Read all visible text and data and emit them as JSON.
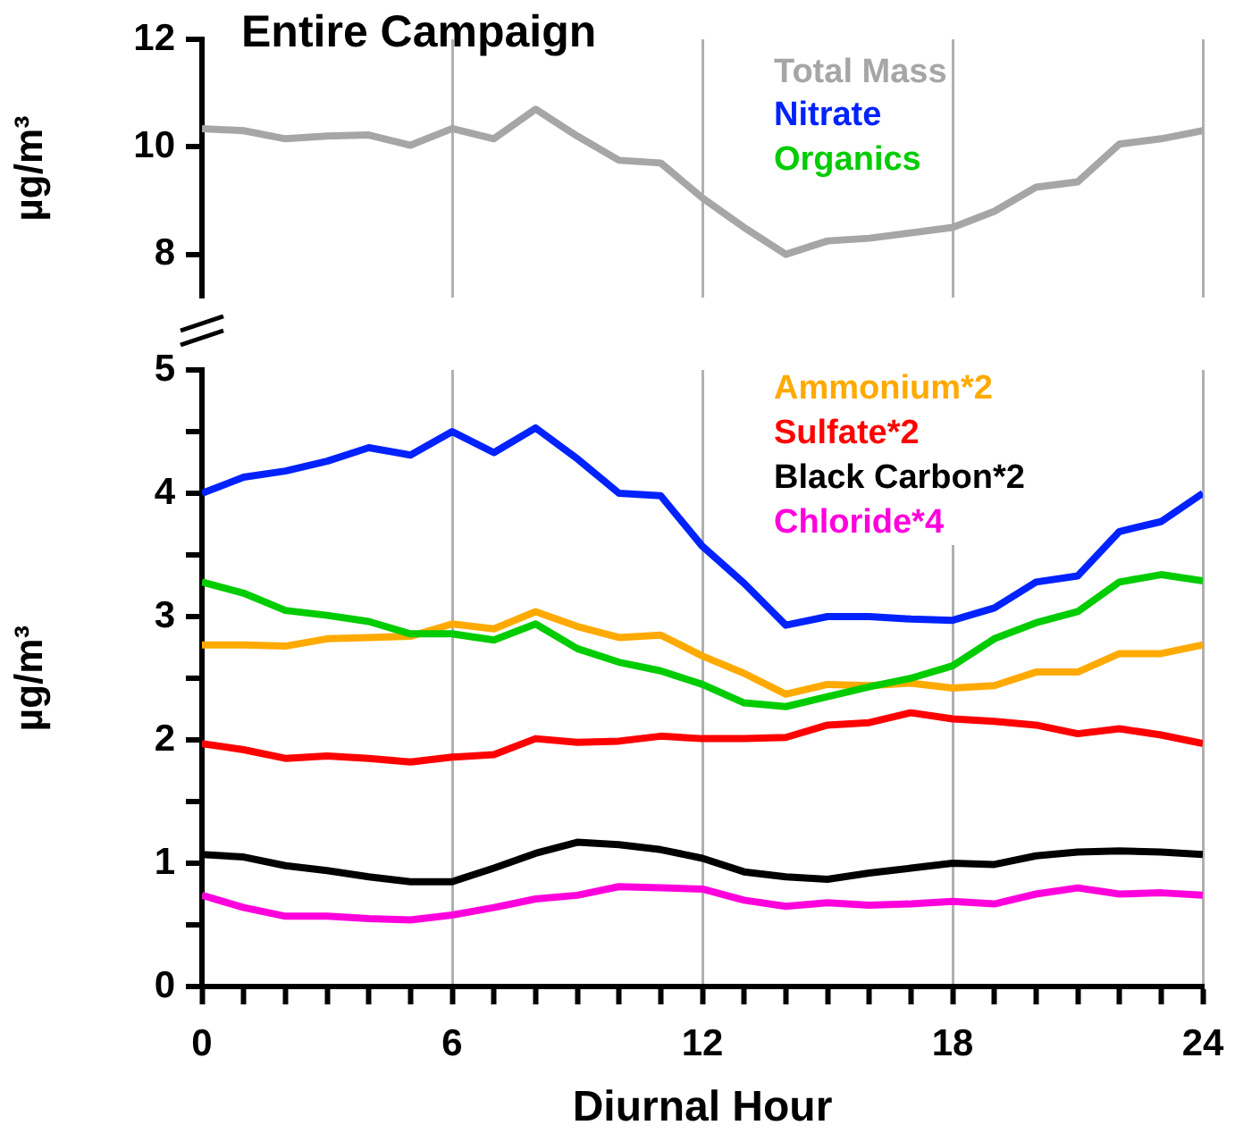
{
  "chart_data": [
    {
      "type": "line",
      "title": "Entire Campaign",
      "ylabel": "µg/m³",
      "x": [
        0,
        1,
        2,
        3,
        4,
        5,
        6,
        7,
        8,
        9,
        10,
        11,
        12,
        13,
        14,
        15,
        16,
        17,
        18,
        19,
        20,
        21,
        22,
        23,
        24
      ],
      "xlim": [
        0,
        24
      ],
      "xticks": [
        0,
        6,
        12,
        18,
        24
      ],
      "ylim": [
        7.2,
        12
      ],
      "yticks": [
        8,
        10,
        12
      ],
      "grid": "x",
      "tick_labels": "y",
      "legend": "top right",
      "series": [
        {
          "name": "Total Mass",
          "color": "#a6a6a6",
          "values": [
            10.34,
            10.3,
            10.15,
            10.2,
            10.22,
            10.03,
            10.34,
            10.15,
            10.7,
            10.2,
            9.75,
            9.7,
            9.05,
            8.5,
            8.0,
            8.25,
            8.3,
            8.4,
            8.5,
            8.8,
            9.25,
            9.35,
            10.05,
            10.15,
            10.3
          ]
        }
      ]
    },
    {
      "type": "line",
      "xlabel": "Diurnal Hour",
      "ylabel": "µg/m³",
      "x": [
        0,
        1,
        2,
        3,
        4,
        5,
        6,
        7,
        8,
        9,
        10,
        11,
        12,
        13,
        14,
        15,
        16,
        17,
        18,
        19,
        20,
        21,
        22,
        23,
        24
      ],
      "xlim": [
        0,
        24
      ],
      "xticks": [
        0,
        {
          "value": 1,
          "label": null
        },
        {
          "value": 2,
          "label": null
        },
        {
          "value": 3,
          "label": null
        },
        {
          "value": 4,
          "label": null
        },
        {
          "value": 5,
          "label": null
        },
        6,
        {
          "value": 7,
          "label": null
        },
        {
          "value": 8,
          "label": null
        },
        {
          "value": 9,
          "label": null
        },
        {
          "value": 10,
          "label": null
        },
        {
          "value": 11,
          "label": null
        },
        12,
        {
          "value": 13,
          "label": null
        },
        {
          "value": 14,
          "label": null
        },
        {
          "value": 15,
          "label": null
        },
        {
          "value": 16,
          "label": null
        },
        {
          "value": 17,
          "label": null
        },
        18,
        {
          "value": 19,
          "label": null
        },
        {
          "value": 20,
          "label": null
        },
        {
          "value": 21,
          "label": null
        },
        {
          "value": 22,
          "label": null
        },
        {
          "value": 23,
          "label": null
        },
        24
      ],
      "ylim": [
        0,
        5
      ],
      "yticks": [
        0,
        {
          "value": 0.5,
          "label": null
        },
        1,
        {
          "value": 1.5,
          "label": null
        },
        2,
        {
          "value": 2.5,
          "label": null
        },
        3,
        {
          "value": 3.5,
          "label": null
        },
        4,
        {
          "value": 4.5,
          "label": null
        },
        5
      ],
      "grid": "x",
      "legend": "top right",
      "series": [
        {
          "name": "Nitrate",
          "color": "#0022ff",
          "values": [
            4.0,
            4.13,
            4.18,
            4.26,
            4.37,
            4.31,
            4.5,
            4.33,
            4.53,
            4.28,
            4.0,
            3.98,
            3.57,
            3.27,
            2.93,
            3.0,
            3.0,
            2.98,
            2.97,
            3.07,
            3.28,
            3.33,
            3.69,
            3.77,
            4.0
          ]
        },
        {
          "name": "Organics",
          "color": "#00cc00",
          "values": [
            3.28,
            3.19,
            3.05,
            3.01,
            2.96,
            2.86,
            2.86,
            2.81,
            2.94,
            2.74,
            2.63,
            2.56,
            2.45,
            2.3,
            2.27,
            2.35,
            2.43,
            2.5,
            2.6,
            2.82,
            2.95,
            3.04,
            3.28,
            3.34,
            3.29
          ]
        },
        {
          "name": "Ammonium*2",
          "color": "#ffaa00",
          "values": [
            2.77,
            2.77,
            2.76,
            2.82,
            2.83,
            2.84,
            2.94,
            2.9,
            3.04,
            2.92,
            2.83,
            2.85,
            2.68,
            2.54,
            2.37,
            2.45,
            2.44,
            2.46,
            2.42,
            2.44,
            2.55,
            2.55,
            2.7,
            2.7,
            2.77
          ]
        },
        {
          "name": "Sulfate*2",
          "color": "#ff0000",
          "values": [
            1.97,
            1.92,
            1.85,
            1.87,
            1.85,
            1.82,
            1.86,
            1.88,
            2.01,
            1.98,
            1.99,
            2.03,
            2.01,
            2.01,
            2.02,
            2.12,
            2.14,
            2.22,
            2.17,
            2.15,
            2.12,
            2.05,
            2.09,
            2.04,
            1.97
          ]
        },
        {
          "name": "Black Carbon*2",
          "color": "#000000",
          "values": [
            1.07,
            1.05,
            0.98,
            0.94,
            0.89,
            0.85,
            0.85,
            0.96,
            1.08,
            1.17,
            1.15,
            1.11,
            1.04,
            0.93,
            0.89,
            0.87,
            0.92,
            0.96,
            1.0,
            0.99,
            1.06,
            1.09,
            1.1,
            1.09,
            1.07
          ]
        },
        {
          "name": "Chloride*4",
          "color": "#ff00dd",
          "values": [
            0.74,
            0.64,
            0.57,
            0.57,
            0.55,
            0.54,
            0.58,
            0.64,
            0.71,
            0.74,
            0.81,
            0.8,
            0.79,
            0.7,
            0.65,
            0.68,
            0.66,
            0.67,
            0.69,
            0.67,
            0.75,
            0.8,
            0.75,
            0.76,
            0.74
          ]
        }
      ]
    }
  ]
}
